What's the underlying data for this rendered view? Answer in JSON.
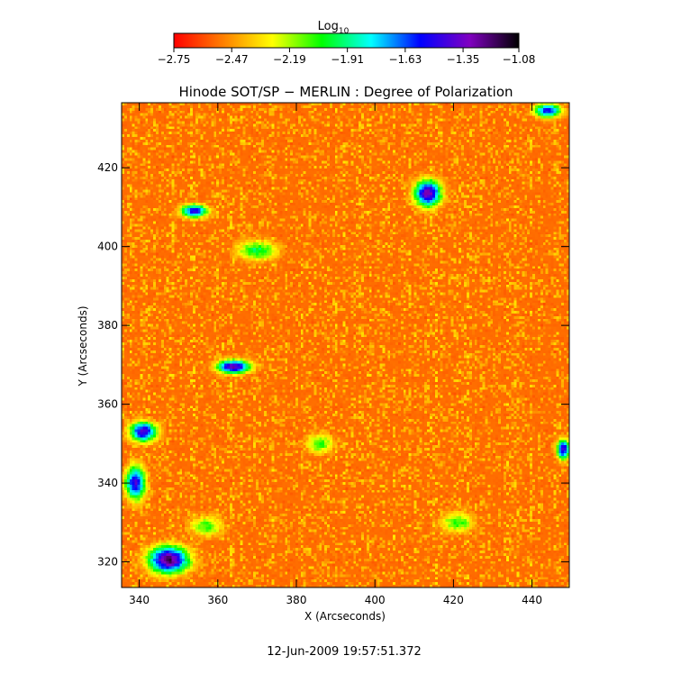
{
  "chart_data": {
    "type": "heatmap",
    "title": "Hinode SOT/SP − MERLIN : Degree of Polarization",
    "xlabel": "X (Arcseconds)",
    "ylabel": "Y (Arcseconds)",
    "xlim": [
      335.5,
      449.5
    ],
    "ylim": [
      313.5,
      436.5
    ],
    "xticks": [
      340,
      360,
      380,
      400,
      420,
      440
    ],
    "yticks": [
      320,
      340,
      360,
      380,
      400,
      420
    ],
    "xtick_labels": [
      "340",
      "360",
      "380",
      "400",
      "420",
      "440"
    ],
    "ytick_labels": [
      "320",
      "340",
      "360",
      "380",
      "400",
      "420"
    ],
    "colorbar": {
      "label_base": "Log",
      "label_sub": "10",
      "range": [
        -2.75,
        -1.08
      ],
      "tick_values": [
        -2.75,
        -2.47,
        -2.19,
        -1.91,
        -1.63,
        -1.35,
        -1.08
      ],
      "tick_labels": [
        "−2.75",
        "−2.47",
        "−2.19",
        "−1.91",
        "−1.63",
        "−1.35",
        "−1.08"
      ],
      "colormap": [
        "#ff0000",
        "#ff7f00",
        "#ffff00",
        "#00ff00",
        "#00ffff",
        "#0000ff",
        "#8000c0",
        "#000000"
      ]
    },
    "background_level": -2.6,
    "features": [
      {
        "x": 347.5,
        "y": 320.5,
        "rx": 6,
        "ry": 4,
        "peak": -1.08
      },
      {
        "x": 339,
        "y": 340,
        "rx": 3,
        "ry": 5,
        "peak": -1.35
      },
      {
        "x": 341,
        "y": 353,
        "rx": 4,
        "ry": 3,
        "peak": -1.3
      },
      {
        "x": 364,
        "y": 369.5,
        "rx": 5,
        "ry": 2,
        "peak": -1.2
      },
      {
        "x": 354,
        "y": 409,
        "rx": 4,
        "ry": 2,
        "peak": -1.4
      },
      {
        "x": 413.5,
        "y": 413.5,
        "rx": 4,
        "ry": 4,
        "peak": -1.2
      },
      {
        "x": 448,
        "y": 348.5,
        "rx": 2,
        "ry": 3,
        "peak": -1.35
      },
      {
        "x": 444,
        "y": 434.5,
        "rx": 4,
        "ry": 2,
        "peak": -1.4
      },
      {
        "x": 370,
        "y": 399,
        "rx": 6,
        "ry": 3,
        "peak": -1.9
      },
      {
        "x": 357,
        "y": 329,
        "rx": 5,
        "ry": 3,
        "peak": -2.0
      },
      {
        "x": 421,
        "y": 330,
        "rx": 5,
        "ry": 3,
        "peak": -2.0
      },
      {
        "x": 386,
        "y": 350,
        "rx": 4,
        "ry": 3,
        "peak": -2.0
      }
    ]
  },
  "footer": {
    "timestamp": "12-Jun-2009 19:57:51.372"
  }
}
